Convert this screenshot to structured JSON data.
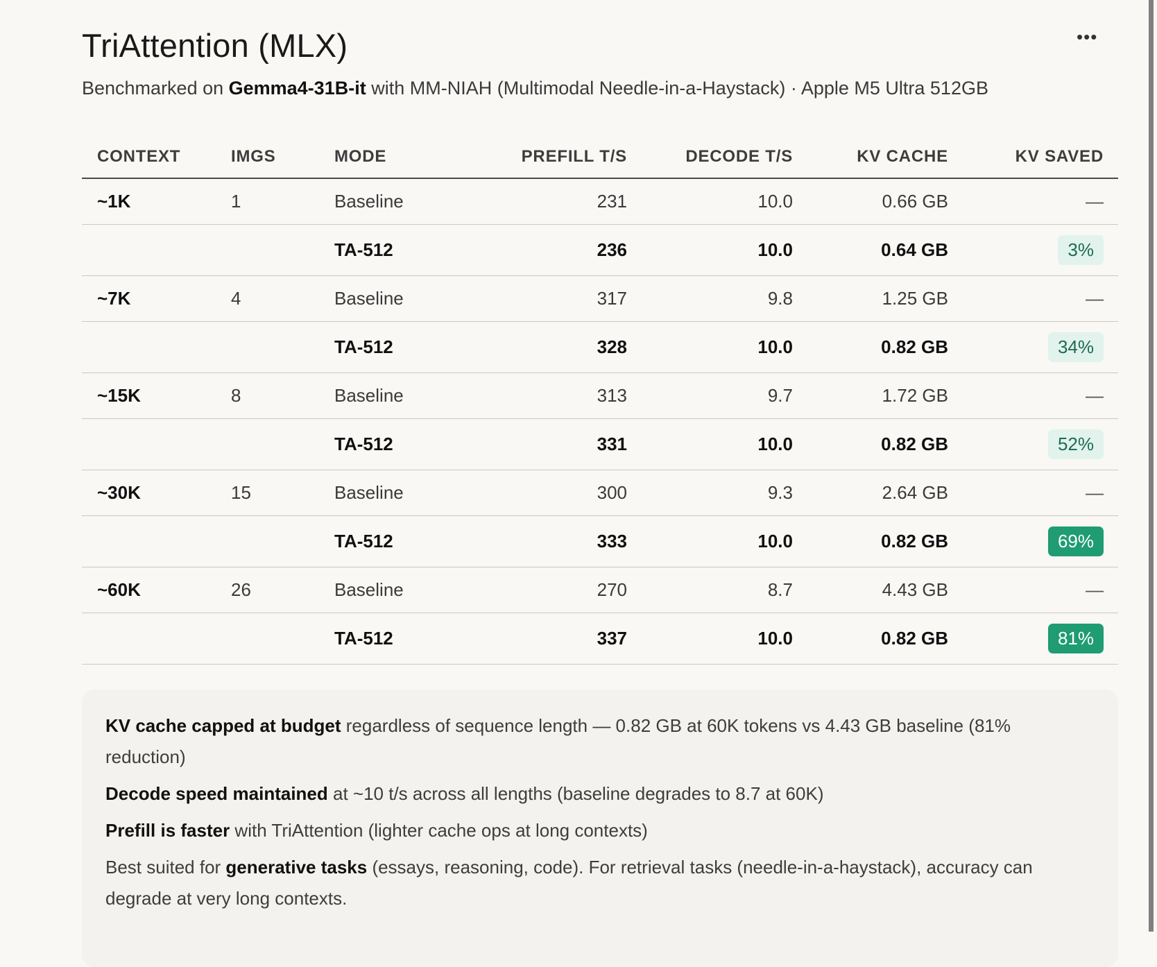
{
  "header": {
    "title": "TriAttention (MLX)",
    "more_icon": "ellipsis-icon",
    "more_label": "•••",
    "subtitle_pre": "Benchmarked on ",
    "subtitle_model": "Gemma4-31B-it",
    "subtitle_post": " with MM-NIAH (Multimodal Needle-in-a-Haystack) · Apple M5 Ultra 512GB"
  },
  "table": {
    "columns": [
      "CONTEXT",
      "IMGS",
      "MODE",
      "PREFILL T/S",
      "DECODE T/S",
      "KV CACHE",
      "KV SAVED"
    ],
    "rows": [
      {
        "context": "~1K",
        "imgs": "1",
        "mode": "Baseline",
        "prefill": "231",
        "decode": "10.0",
        "kv": "0.66 GB",
        "saved": "—"
      },
      {
        "context": "",
        "imgs": "",
        "mode": "TA-512",
        "prefill": "236",
        "decode": "10.0",
        "kv": "0.64 GB",
        "saved": "3%"
      },
      {
        "context": "~7K",
        "imgs": "4",
        "mode": "Baseline",
        "prefill": "317",
        "decode": "9.8",
        "kv": "1.25 GB",
        "saved": "—"
      },
      {
        "context": "",
        "imgs": "",
        "mode": "TA-512",
        "prefill": "328",
        "decode": "10.0",
        "kv": "0.82 GB",
        "saved": "34%"
      },
      {
        "context": "~15K",
        "imgs": "8",
        "mode": "Baseline",
        "prefill": "313",
        "decode": "9.7",
        "kv": "1.72 GB",
        "saved": "—"
      },
      {
        "context": "",
        "imgs": "",
        "mode": "TA-512",
        "prefill": "331",
        "decode": "10.0",
        "kv": "0.82 GB",
        "saved": "52%"
      },
      {
        "context": "~30K",
        "imgs": "15",
        "mode": "Baseline",
        "prefill": "300",
        "decode": "9.3",
        "kv": "2.64 GB",
        "saved": "—"
      },
      {
        "context": "",
        "imgs": "",
        "mode": "TA-512",
        "prefill": "333",
        "decode": "10.0",
        "kv": "0.82 GB",
        "saved": "69%"
      },
      {
        "context": "~60K",
        "imgs": "26",
        "mode": "Baseline",
        "prefill": "270",
        "decode": "8.7",
        "kv": "4.43 GB",
        "saved": "—"
      },
      {
        "context": "",
        "imgs": "",
        "mode": "TA-512",
        "prefill": "337",
        "decode": "10.0",
        "kv": "0.82 GB",
        "saved": "81%"
      }
    ],
    "badge_colors": {
      "light_bg": "#e1f3ec",
      "light_text": "#1f6b52",
      "strong_bg": "#1f9c72",
      "strong_text": "#ffffff"
    }
  },
  "notes": [
    {
      "bold": "KV cache capped at budget",
      "rest": " regardless of sequence length — 0.82 GB at 60K tokens vs 4.43 GB baseline (81% reduction)"
    },
    {
      "bold": "Decode speed maintained",
      "rest": " at ~10 t/s across all lengths (baseline degrades to 8.7 at 60K)"
    },
    {
      "bold": "Prefill is faster",
      "rest": " with TriAttention (lighter cache ops at long contexts)"
    },
    {
      "pre": "Best suited for ",
      "bold": "generative tasks",
      "rest": " (essays, reasoning, code). For retrieval tasks (needle-in-a-haystack), accuracy can degrade at very long contexts."
    }
  ]
}
